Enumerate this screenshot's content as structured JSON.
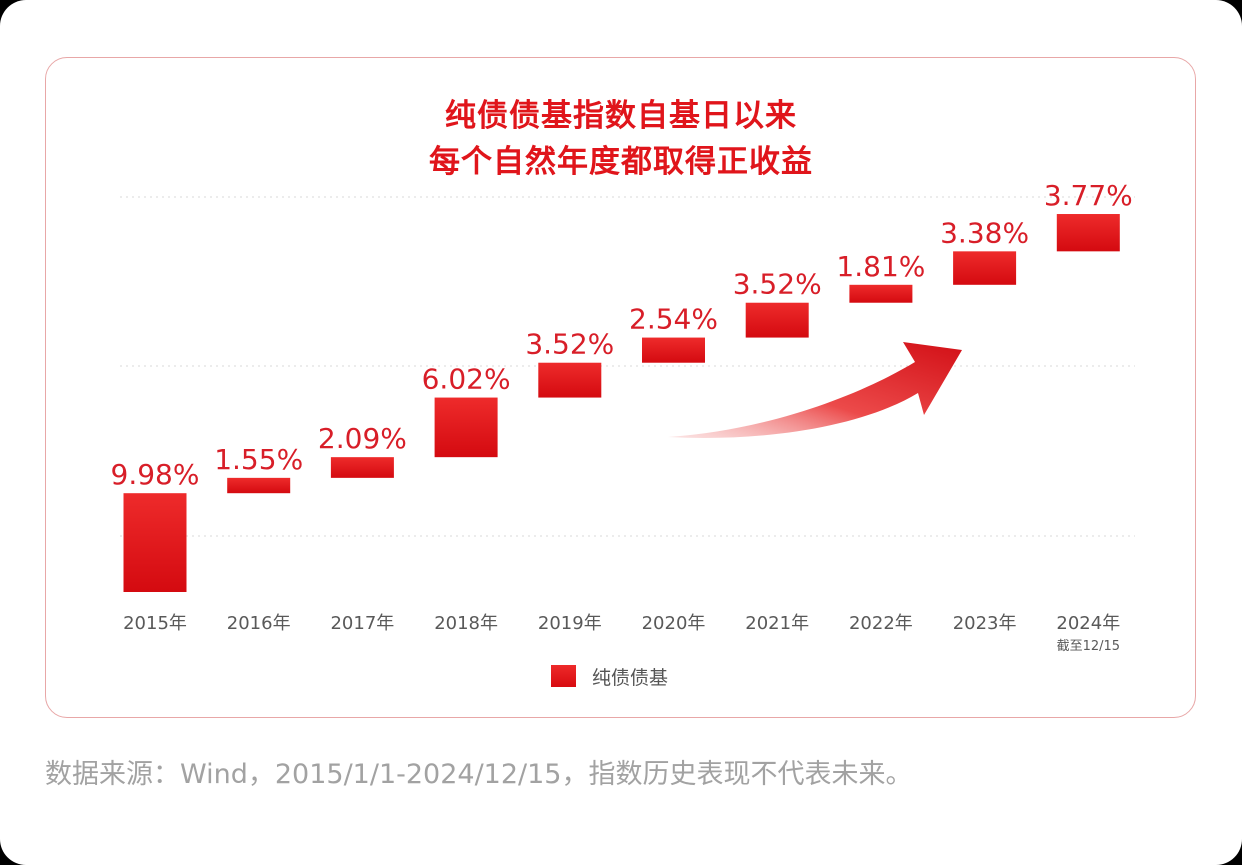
{
  "chart_data": {
    "type": "bar",
    "subtype": "waterfall",
    "title_lines": [
      "纯债债基指数自基日以来",
      "每个自然年度都取得正收益"
    ],
    "categories": [
      "2015年",
      "2016年",
      "2017年",
      "2018年",
      "2019年",
      "2020年",
      "2021年",
      "2022年",
      "2023年",
      "2024年"
    ],
    "category_notes": [
      "",
      "",
      "",
      "",
      "",
      "",
      "",
      "",
      "",
      "截至12/15"
    ],
    "values": [
      9.98,
      1.55,
      2.09,
      6.02,
      3.52,
      2.54,
      3.52,
      1.81,
      3.38,
      3.77
    ],
    "labels": [
      "9.98%",
      "1.55%",
      "2.09%",
      "6.02%",
      "3.52%",
      "2.54%",
      "3.52%",
      "1.81%",
      "3.38%",
      "3.77%"
    ],
    "legend": [
      "纯债债基"
    ],
    "legend_position": "bottom",
    "grid": "horizontal-dotted",
    "colors": {
      "bar": "#e0151b",
      "label": "#d81e28",
      "arrow": "#e0151b"
    }
  },
  "source_note": "数据来源：Wind，2015/1/1-2024/12/15，指数历史表现不代表未来。"
}
